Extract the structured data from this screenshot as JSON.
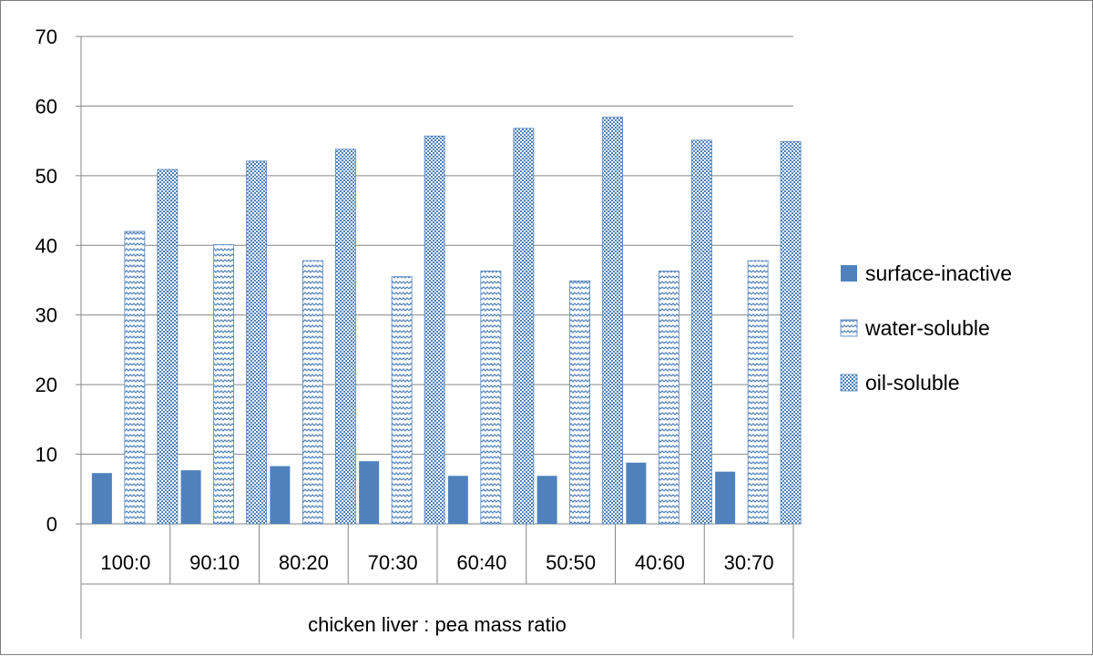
{
  "chart_data": {
    "type": "bar",
    "categories": [
      "100:0",
      "90:10",
      "80:20",
      "70:30",
      "60:40",
      "50:50",
      "40:60",
      "30:70"
    ],
    "series": [
      {
        "name": "surface-inactive",
        "values": [
          7.3,
          7.7,
          8.3,
          9.0,
          6.9,
          6.9,
          8.8,
          7.5
        ],
        "color": "#4f81bd",
        "fill": "solid"
      },
      {
        "name": "water-soluble",
        "values": [
          42.0,
          40.1,
          37.8,
          35.5,
          36.3,
          34.9,
          36.3,
          37.8
        ],
        "color": "#4f81bd",
        "fill": "zigzag"
      },
      {
        "name": "oil-soluble",
        "values": [
          50.9,
          52.1,
          53.8,
          55.7,
          56.8,
          58.4,
          55.1,
          54.9
        ],
        "color": "#4f81bd",
        "fill": "checker"
      }
    ],
    "xlabel": "chicken liver : pea mass ratio",
    "ylabel": "",
    "ylim": [
      0,
      70
    ],
    "yticks": [
      0,
      10,
      20,
      30,
      40,
      50,
      60,
      70
    ],
    "grid": true,
    "legend_position": "right"
  }
}
